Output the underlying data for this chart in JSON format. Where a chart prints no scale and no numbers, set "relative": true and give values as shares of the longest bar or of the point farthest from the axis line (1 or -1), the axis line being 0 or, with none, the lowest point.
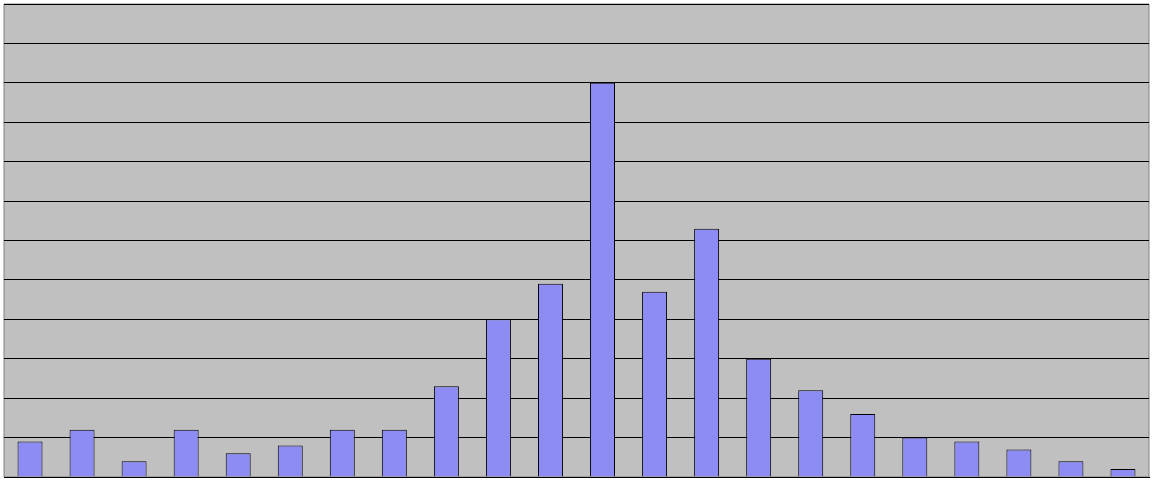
{
  "chart_data": {
    "type": "bar",
    "relative": true,
    "grid": "y",
    "categories": [
      null,
      null,
      null,
      null,
      null,
      null,
      null,
      null,
      null,
      null,
      null,
      null,
      null,
      null,
      null,
      null,
      null,
      null,
      null,
      null,
      null,
      null
    ],
    "values": [
      0.09,
      0.12,
      0.04,
      0.12,
      0.06,
      0.08,
      0.12,
      0.12,
      0.23,
      0.4,
      0.49,
      1,
      0.47,
      0.63,
      0.3,
      0.22,
      0.16,
      0.1,
      0.09,
      0.07,
      0.04,
      0.02
    ],
    "color": "#8c8cf4"
  }
}
